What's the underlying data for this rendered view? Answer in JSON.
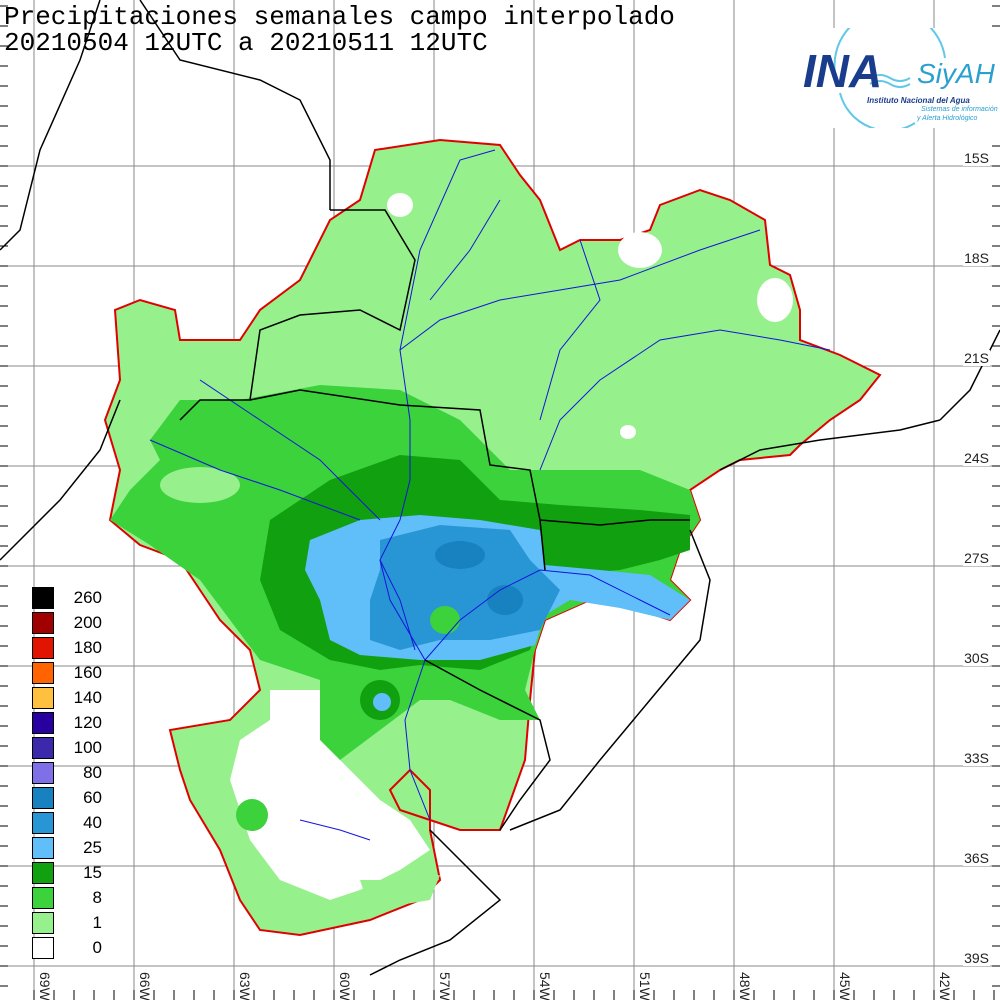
{
  "title": {
    "line1": "Precipitaciones semanales campo interpolado",
    "line2": "20210504 12UTC a 20210511 12UTC"
  },
  "logo": {
    "ina": "INA",
    "siyah": "SiyAH",
    "org": "Instituto Nacional del Agua",
    "sub1": "Sistemas de información",
    "sub2": "y Alerta Hidrológico"
  },
  "latitude_labels": [
    "15S",
    "18S",
    "21S",
    "24S",
    "27S",
    "30S",
    "33S",
    "36S",
    "39S"
  ],
  "longitude_labels": [
    "69W",
    "66W",
    "63W",
    "60W",
    "57W",
    "54W",
    "51W",
    "48W",
    "45W",
    "42W"
  ],
  "legend": [
    {
      "label": "260",
      "color": "#000000"
    },
    {
      "label": "200",
      "color": "#a00000"
    },
    {
      "label": "180",
      "color": "#e01400"
    },
    {
      "label": "160",
      "color": "#ff6400"
    },
    {
      "label": "140",
      "color": "#ffc040"
    },
    {
      "label": "120",
      "color": "#2800a0"
    },
    {
      "label": "100",
      "color": "#3c28aa"
    },
    {
      "label": "80",
      "color": "#8070e8"
    },
    {
      "label": "60",
      "color": "#1882c0"
    },
    {
      "label": "40",
      "color": "#2896d4"
    },
    {
      "label": "25",
      "color": "#60bef8"
    },
    {
      "label": "15",
      "color": "#10a010"
    },
    {
      "label": "8",
      "color": "#3cd23c"
    },
    {
      "label": "1",
      "color": "#96f08c"
    },
    {
      "label": "0",
      "color": "#ffffff"
    }
  ]
}
